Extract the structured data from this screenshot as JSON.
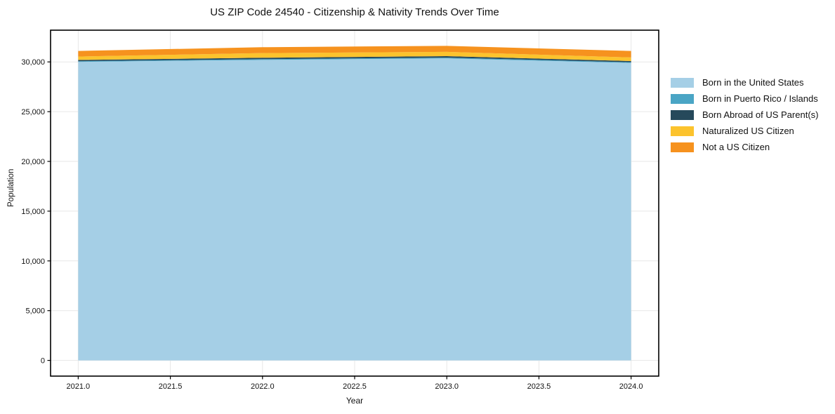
{
  "chart_data": {
    "type": "area",
    "stacked": true,
    "title": "US ZIP Code 24540 - Citizenship & Nativity Trends Over Time",
    "xlabel": "Year",
    "ylabel": "Population",
    "x": [
      2021,
      2022,
      2023,
      2024
    ],
    "series": [
      {
        "name": "Born in the United States",
        "color": "#A5CFE6",
        "values": [
          30000,
          30200,
          30350,
          29900
        ]
      },
      {
        "name": "Born in Puerto Rico / Islands",
        "color": "#4AA5C5",
        "values": [
          70,
          80,
          80,
          70
        ]
      },
      {
        "name": "Born Abroad of US Parent(s)",
        "color": "#26495B",
        "values": [
          130,
          140,
          150,
          120
        ]
      },
      {
        "name": "Naturalized US Citizen",
        "color": "#FCC32D",
        "values": [
          340,
          470,
          430,
          360
        ]
      },
      {
        "name": "Not a US Citizen",
        "color": "#F6921E",
        "values": [
          560,
          590,
          600,
          650
        ]
      }
    ],
    "x_tick_values": [
      2021.0,
      2021.5,
      2022.0,
      2022.5,
      2023.0,
      2023.5,
      2024.0
    ],
    "x_tick_labels": [
      "2021.0",
      "2021.5",
      "2022.0",
      "2022.5",
      "2023.0",
      "2023.5",
      "2024.0"
    ],
    "y_tick_values": [
      0,
      5000,
      10000,
      15000,
      20000,
      25000,
      30000
    ],
    "y_tick_labels": [
      "0",
      "5,000",
      "10,000",
      "15,000",
      "20,000",
      "25,000",
      "30,000"
    ],
    "xlim": [
      2020.85,
      2024.15
    ],
    "ylim": [
      -1580,
      33190
    ],
    "grid": true,
    "legend_position": "outside-right-top"
  },
  "colors": {
    "background": "#ffffff",
    "grid": "#e7e7e7",
    "spine": "#000000",
    "tick": "#000000",
    "text": "#111111"
  }
}
